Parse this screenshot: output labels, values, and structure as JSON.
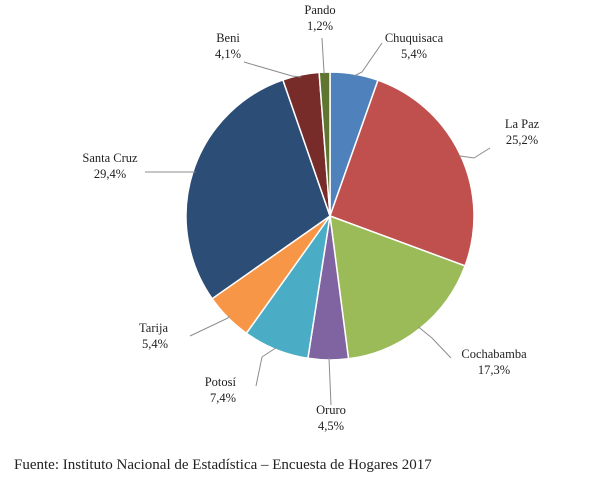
{
  "chart_data": {
    "type": "pie",
    "title": "",
    "categories": [
      "Chuquisaca",
      "La Paz",
      "Cochabamba",
      "Oruro",
      "Potosí",
      "Tarija",
      "Santa Cruz",
      "Beni",
      "Pando"
    ],
    "value_labels": [
      "5,4%",
      "25,2%",
      "17,3%",
      "4,5%",
      "7,4%",
      "5,4%",
      "29,4%",
      "4,1%",
      "1,2%"
    ],
    "values": [
      5.4,
      25.2,
      17.3,
      4.5,
      7.4,
      5.4,
      29.4,
      4.1,
      1.2
    ],
    "colors": [
      "#4f81bd",
      "#c0504d",
      "#9bbb59",
      "#8064a2",
      "#4bacc6",
      "#f79646",
      "#2c4d75",
      "#772c2a",
      "#5f7530"
    ],
    "start_angle_deg": 0,
    "direction": "clockwise",
    "legend": "none",
    "labels": "outside-with-leader-lines"
  },
  "source": "Fuente: Instituto Nacional de Estadística – Encuesta de Hogares 2017"
}
